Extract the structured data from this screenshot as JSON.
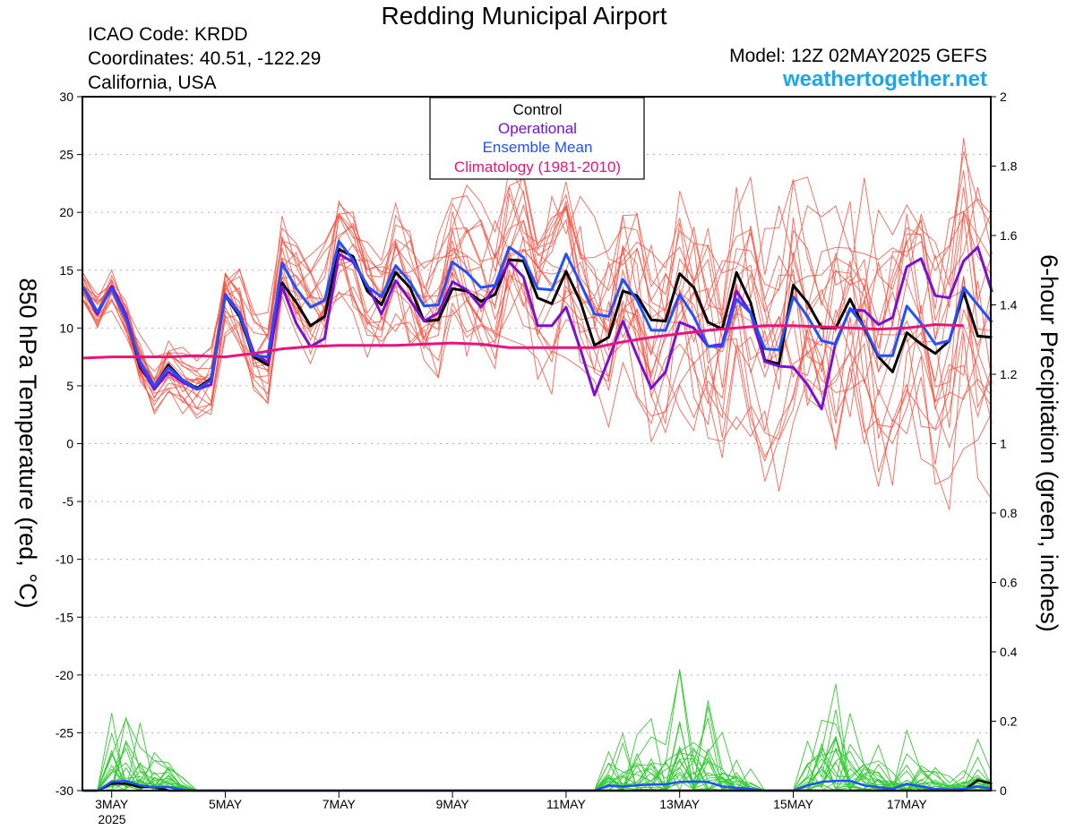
{
  "header": {
    "title": "Redding Municipal Airport",
    "icao": "ICAO Code: KRDD",
    "coordinates": "Coordinates: 40.51, -122.29",
    "region": "California, USA",
    "model": "Model: 12Z 02MAY2025 GEFS",
    "site": "weathertogether.net"
  },
  "colors": {
    "control": "#000000",
    "operational": "#7a0fd6",
    "ensemble_mean": "#2050ff",
    "climatology": "#e8147c",
    "members_temp": "#ff4a3a",
    "members_precip": "#33cc33",
    "site": "#1aa7ec"
  },
  "chart_data": {
    "type": "line",
    "ylabel_left": "850 hPa Temperature (red, °C)",
    "ylabel_right": "6-hour Precipitation (green, inches)",
    "ylim_left": [
      -30,
      30
    ],
    "ylim_right": [
      0,
      2
    ],
    "yticks_left": [
      "30",
      "25",
      "20",
      "15",
      "10",
      "5",
      "0",
      "-5",
      "-10",
      "-15",
      "-20",
      "-25",
      "-30"
    ],
    "yticks_right": [
      "2",
      "1.8",
      "1.6",
      "1.4",
      "1.2",
      "1",
      "0.8",
      "0.6",
      "0.4",
      "0.2",
      "0"
    ],
    "xticks": [
      {
        "label": "3MAY",
        "day": 3
      },
      {
        "label": "5MAY",
        "day": 5
      },
      {
        "label": "7MAY",
        "day": 7
      },
      {
        "label": "9MAY",
        "day": 9
      },
      {
        "label": "11MAY",
        "day": 11
      },
      {
        "label": "13MAY",
        "day": 13
      },
      {
        "label": "15MAY",
        "day": 15
      },
      {
        "label": "17MAY",
        "day": 17
      }
    ],
    "year_label": "2025",
    "grid": true,
    "legend": [
      "Control",
      "Operational",
      "Ensemble Mean",
      "Climatology (1981-2010)"
    ],
    "legend_position": "top-center",
    "x_start": "2025-05-02 12Z",
    "x_step_hours": 6,
    "series": [
      {
        "name": "Control",
        "axis": "left",
        "values": [
          13.5,
          11.2,
          13.6,
          11.2,
          6.6,
          4.9,
          6.8,
          5.5,
          4.8,
          5.6,
          12.8,
          11.0,
          7.5,
          6.8,
          13.9,
          12.2,
          10.2,
          11.0,
          16.8,
          16.2,
          13.2,
          12.0,
          14.8,
          13.5,
          10.6,
          10.7,
          13.4,
          13.2,
          12.3,
          12.9,
          15.9,
          15.8,
          12.6,
          12.1,
          14.9,
          12.3,
          8.5,
          9.2,
          13.2,
          12.8,
          10.7,
          10.6,
          14.7,
          13.5,
          10.5,
          9.9,
          14.8,
          12.2,
          7.2,
          6.9,
          13.7,
          12.2,
          10.0,
          10.0,
          12.5,
          10.0,
          7.5,
          6.2,
          9.6,
          8.6,
          7.8,
          8.9,
          13.1,
          9.3,
          9.2
        ]
      },
      {
        "name": "Operational",
        "axis": "left",
        "values": [
          13.5,
          11.2,
          13.6,
          11.2,
          6.8,
          4.7,
          6.2,
          5.3,
          4.7,
          5.1,
          12.9,
          11.3,
          7.9,
          7.0,
          13.6,
          10.4,
          8.4,
          9.1,
          16.4,
          15.7,
          13.7,
          11.2,
          14.1,
          12.4,
          10.6,
          11.3,
          14.0,
          13.3,
          11.8,
          13.6,
          15.7,
          14.4,
          10.2,
          10.2,
          11.8,
          8.2,
          4.2,
          7.3,
          10.6,
          7.6,
          4.8,
          6.2,
          10.5,
          10.0,
          8.4,
          8.6,
          13.2,
          11.3,
          7.1,
          6.7,
          6.6,
          5.1,
          3.0,
          8.8,
          11.6,
          11.5,
          10.3,
          10.9,
          15.3,
          16.0,
          12.8,
          12.6,
          15.8,
          17.0,
          13.1
        ]
      },
      {
        "name": "Ensemble Mean",
        "axis": "left",
        "values": [
          13.5,
          11.4,
          13.4,
          10.8,
          7.1,
          5.0,
          6.6,
          5.5,
          4.7,
          5.5,
          12.8,
          11.2,
          7.6,
          7.5,
          15.6,
          13.4,
          11.8,
          12.4,
          17.5,
          15.9,
          13.6,
          12.7,
          15.4,
          14.0,
          11.9,
          12.0,
          15.7,
          14.8,
          13.5,
          13.7,
          17.0,
          16.1,
          13.4,
          13.3,
          16.4,
          13.9,
          11.2,
          11.0,
          14.2,
          12.4,
          9.8,
          9.8,
          12.9,
          11.0,
          8.4,
          8.4,
          12.5,
          11.3,
          8.2,
          8.1,
          12.7,
          11.0,
          8.9,
          8.6,
          11.7,
          10.1,
          7.6,
          7.6,
          11.9,
          10.4,
          8.6,
          8.9,
          13.5,
          12.0,
          10.5
        ]
      },
      {
        "name": "Climatology (1981-2010)",
        "axis": "left",
        "values": [
          7.4,
          7.5,
          7.5,
          7.5,
          7.6,
          7.5,
          7.8,
          8.2,
          8.4,
          8.5,
          8.5,
          8.5,
          8.6,
          8.7,
          8.6,
          8.3,
          8.3,
          8.3,
          8.3,
          8.8,
          9.2,
          9.5,
          9.8,
          10.0,
          10.2,
          10.2,
          10.1,
          10.0,
          9.9,
          10.0,
          10.3,
          10.2
        ]
      },
      {
        "name": "Control precipitation",
        "axis": "right",
        "values": [
          0,
          0,
          0.02,
          0.02,
          0.01,
          0.01,
          0,
          0,
          0,
          0,
          0,
          0,
          0,
          0,
          0,
          0,
          0,
          0,
          0,
          0,
          0,
          0,
          0,
          0,
          0,
          0,
          0,
          0,
          0,
          0,
          0,
          0,
          0,
          0,
          0,
          0,
          0,
          0,
          0,
          0,
          0,
          0,
          0,
          0,
          0,
          0,
          0,
          0,
          0,
          0,
          0,
          0,
          0,
          0,
          0,
          0,
          0,
          0,
          0,
          0,
          0,
          0,
          0,
          0.03,
          0.02
        ]
      },
      {
        "name": "Ensemble mean precipitation",
        "axis": "right",
        "values": [
          0,
          0,
          0.025,
          0.028,
          0.015,
          0.01,
          0.01,
          0.003,
          0,
          0,
          0,
          0,
          0,
          0,
          0,
          0,
          0,
          0,
          0,
          0,
          0,
          0,
          0,
          0,
          0,
          0,
          0,
          0,
          0,
          0,
          0,
          0,
          0,
          0,
          0,
          0,
          0,
          0.015,
          0.012,
          0.015,
          0.018,
          0.018,
          0.025,
          0.026,
          0.025,
          0.012,
          0.008,
          0.005,
          0,
          0,
          0,
          0.015,
          0.025,
          0.028,
          0.028,
          0.015,
          0.01,
          0.005,
          0.02,
          0.012,
          0.005,
          0.003,
          0.005,
          0.012,
          0.005
        ]
      }
    ]
  }
}
